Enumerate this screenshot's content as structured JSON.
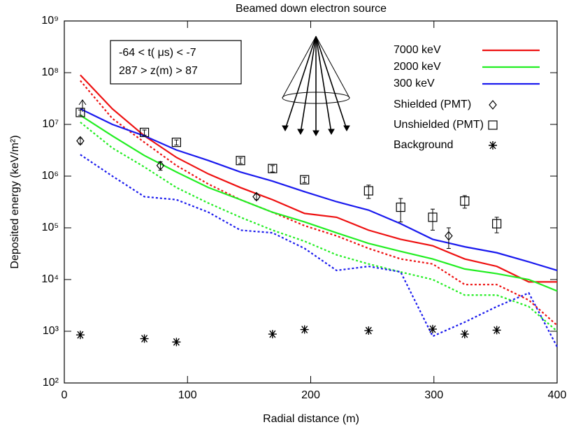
{
  "chart_data": {
    "type": "line",
    "title": "Beamed down electron source",
    "x_label": "Radial distance (m)",
    "y_label": "Deposited energy (keV/m²)",
    "annotations": [
      "-64 < t( μs) < -7",
      "287 > z(m) > 87"
    ],
    "log_y": true,
    "xlim": [
      0,
      400
    ],
    "xticks": [
      0,
      100,
      200,
      300,
      400
    ],
    "ylim": [
      100,
      1000000000
    ],
    "yticks": [
      {
        "value": 100,
        "label": "10²"
      },
      {
        "value": 1000,
        "label": "10³"
      },
      {
        "value": 10000,
        "label": "10⁴"
      },
      {
        "value": 100000,
        "label": "10⁵"
      },
      {
        "value": 1000000,
        "label": "10⁶"
      },
      {
        "value": 10000000,
        "label": "10⁷"
      },
      {
        "value": 100000000,
        "label": "10⁸"
      },
      {
        "value": 1000000000,
        "label": "10⁹"
      }
    ],
    "x": [
      13,
      39,
      65,
      91,
      117,
      143,
      169,
      195,
      221,
      247,
      273,
      299,
      325,
      351,
      377,
      400
    ],
    "series": [
      {
        "name": "7000 keV",
        "color": "#ee1111",
        "values": [
          90000000,
          20000000,
          6000000,
          2300000,
          1100000,
          600000,
          350000,
          190000,
          160000,
          90000,
          60000,
          45000,
          25000,
          18000,
          9000,
          9000
        ],
        "dotted_values": [
          70000000,
          13000000,
          4500000,
          1600000,
          700000,
          350000,
          200000,
          110000,
          70000,
          40000,
          25000,
          20000,
          8000,
          8000,
          4000,
          1300
        ]
      },
      {
        "name": "2000 keV",
        "color": "#22ee22",
        "values": [
          15000000,
          6000000,
          2500000,
          1200000,
          600000,
          350000,
          200000,
          130000,
          80000,
          50000,
          35000,
          25000,
          16000,
          13000,
          10000,
          6000
        ],
        "dotted_values": [
          11000000,
          3500000,
          1500000,
          600000,
          300000,
          160000,
          90000,
          55000,
          30000,
          20000,
          14000,
          10000,
          5000,
          5000,
          3000,
          1000
        ]
      },
      {
        "name": "300 keV",
        "color": "#1a1aee",
        "values": [
          20000000,
          10000000,
          6000000,
          3200000,
          2000000,
          1200000,
          800000,
          500000,
          320000,
          220000,
          120000,
          60000,
          43000,
          33000,
          22000,
          15000
        ],
        "dotted_values": [
          2600000,
          1000000,
          400000,
          350000,
          200000,
          90000,
          80000,
          40000,
          15000,
          18000,
          14000,
          800,
          1500,
          3000,
          5500,
          500
        ]
      }
    ],
    "point_series": [
      {
        "name": "Shielded (PMT)",
        "marker": "diamond",
        "x": [
          13,
          78,
          156,
          312
        ],
        "values": [
          4800000,
          1600000,
          400000,
          70000
        ],
        "errors": [
          600000,
          300000,
          50000,
          30000
        ]
      },
      {
        "name": "Unshielded (PMT)",
        "marker": "square",
        "x": [
          13,
          65,
          91,
          143,
          169,
          195,
          247,
          273,
          299,
          325,
          351
        ],
        "values": [
          17000000,
          7000000,
          4500000,
          2000000,
          1400000,
          850000,
          520000,
          250000,
          160000,
          330000,
          120000
        ],
        "errors": [
          2000000,
          800000,
          500000,
          250000,
          200000,
          100000,
          150000,
          120000,
          70000,
          90000,
          40000
        ]
      },
      {
        "name": "Background",
        "marker": "asterisk",
        "x": [
          13,
          65,
          91,
          169,
          195,
          247,
          299,
          325,
          351
        ],
        "values": [
          850,
          720,
          620,
          880,
          1080,
          1030,
          1100,
          880,
          1050
        ]
      }
    ]
  }
}
